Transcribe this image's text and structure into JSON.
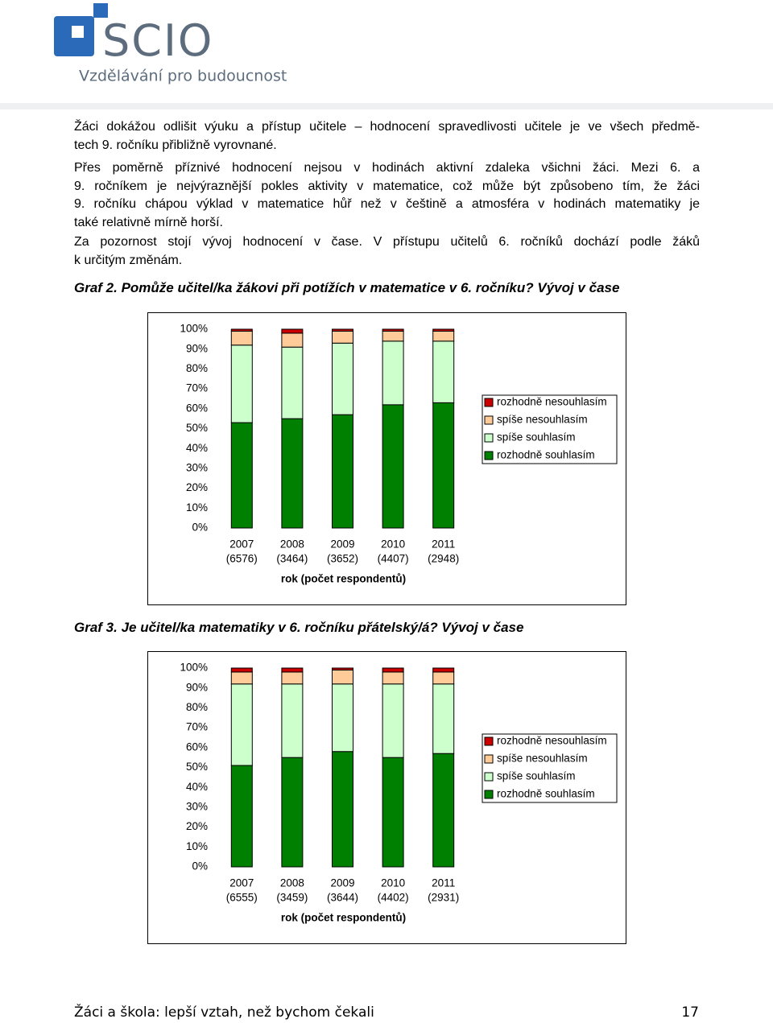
{
  "header": {
    "logo": "SCIO",
    "tagline": "Vzdělávání pro budoucnost"
  },
  "document": {
    "paragraphs": [
      [
        "Žáci dokážou odlišit výuku a přístup učitele – hodnocení spravedlivosti učitele je ve všech předmě-",
        "tech 9. ročníku přibližně vyrovnané."
      ],
      [
        "Přes poměrně příznivé hodnocení nejsou v hodinách aktivní zdaleka všichni žáci. Mezi 6. a",
        "9. ročníkem je nejvýraznější pokles aktivity v matematice, což může být způsobeno tím, že žáci",
        "9. ročníku chápou výklad v matematice hůř než v češtině a atmosféra v hodinách matematiky je",
        "také relativně mírně horší."
      ],
      [
        "Za pozornost stojí vývoj hodnocení v čase. V přístupu učitelů 6. ročníků dochází podle žáků",
        "k určitým změnám."
      ]
    ]
  },
  "chart_data": [
    {
      "type": "stacked-bar",
      "title": "Graf 2. Pomůže učitel/ka žákovi při potížích v matematice v 6. ročníku? Vývoj v čase",
      "x_label": "rok (počet respondentů)",
      "categories": [
        [
          "2007",
          "(6576)"
        ],
        [
          "2008",
          "(3464)"
        ],
        [
          "2009",
          "(3652)"
        ],
        [
          "2010",
          "(4407)"
        ],
        [
          "2011",
          "(2948)"
        ]
      ],
      "series": [
        {
          "name": "rozhodně souhlasím",
          "color": "#008000",
          "values": [
            53,
            55,
            57,
            62,
            63
          ]
        },
        {
          "name": "spíše souhlasím",
          "color": "#ccffcc",
          "values": [
            39,
            36,
            36,
            32,
            31
          ]
        },
        {
          "name": "spíše nesouhlasím",
          "color": "#ffcc99",
          "values": [
            7,
            7,
            6,
            5,
            5
          ]
        },
        {
          "name": "rozhodně nesouhlasím",
          "color": "#cc0000",
          "values": [
            1,
            2,
            1,
            1,
            1
          ]
        }
      ],
      "ylim": [
        0,
        100
      ],
      "yticks": [
        {
          "value": 0,
          "label": "0%"
        },
        {
          "value": 10,
          "label": "10%"
        },
        {
          "value": 20,
          "label": "20%"
        },
        {
          "value": 30,
          "label": "30%"
        },
        {
          "value": 40,
          "label": "40%"
        },
        {
          "value": 50,
          "label": "50%"
        },
        {
          "value": 60,
          "label": "60%"
        },
        {
          "value": 70,
          "label": "70%"
        },
        {
          "value": 80,
          "label": "80%"
        },
        {
          "value": 90,
          "label": "90%"
        },
        {
          "value": 100,
          "label": "100%"
        }
      ],
      "legend": "right"
    },
    {
      "type": "stacked-bar",
      "title": "Graf 3. Je učitel/ka matematiky v 6. ročníku přátelský/á? Vývoj v čase",
      "x_label": "rok (počet respondentů)",
      "categories": [
        [
          "2007",
          "(6555)"
        ],
        [
          "2008",
          "(3459)"
        ],
        [
          "2009",
          "(3644)"
        ],
        [
          "2010",
          "(4402)"
        ],
        [
          "2011",
          "(2931)"
        ]
      ],
      "series": [
        {
          "name": "rozhodně souhlasím",
          "color": "#008000",
          "values": [
            51,
            55,
            58,
            55,
            57
          ]
        },
        {
          "name": "spíše souhlasím",
          "color": "#ccffcc",
          "values": [
            41,
            37,
            34,
            37,
            35
          ]
        },
        {
          "name": "spíše nesouhlasím",
          "color": "#ffcc99",
          "values": [
            6,
            6,
            7,
            6,
            6
          ]
        },
        {
          "name": "rozhodně nesouhlasím",
          "color": "#cc0000",
          "values": [
            2,
            2,
            1,
            2,
            2
          ]
        }
      ],
      "ylim": [
        0,
        100
      ],
      "yticks": [
        {
          "value": 0,
          "label": "0%"
        },
        {
          "value": 10,
          "label": "10%"
        },
        {
          "value": 20,
          "label": "20%"
        },
        {
          "value": 30,
          "label": "30%"
        },
        {
          "value": 40,
          "label": "40%"
        },
        {
          "value": 50,
          "label": "50%"
        },
        {
          "value": 60,
          "label": "60%"
        },
        {
          "value": 70,
          "label": "70%"
        },
        {
          "value": 80,
          "label": "80%"
        },
        {
          "value": 90,
          "label": "90%"
        },
        {
          "value": 100,
          "label": "100%"
        }
      ],
      "legend": "right"
    }
  ],
  "footer": {
    "text": "Žáci a škola: lepší vztah, než bychom čekali",
    "page": "17"
  }
}
